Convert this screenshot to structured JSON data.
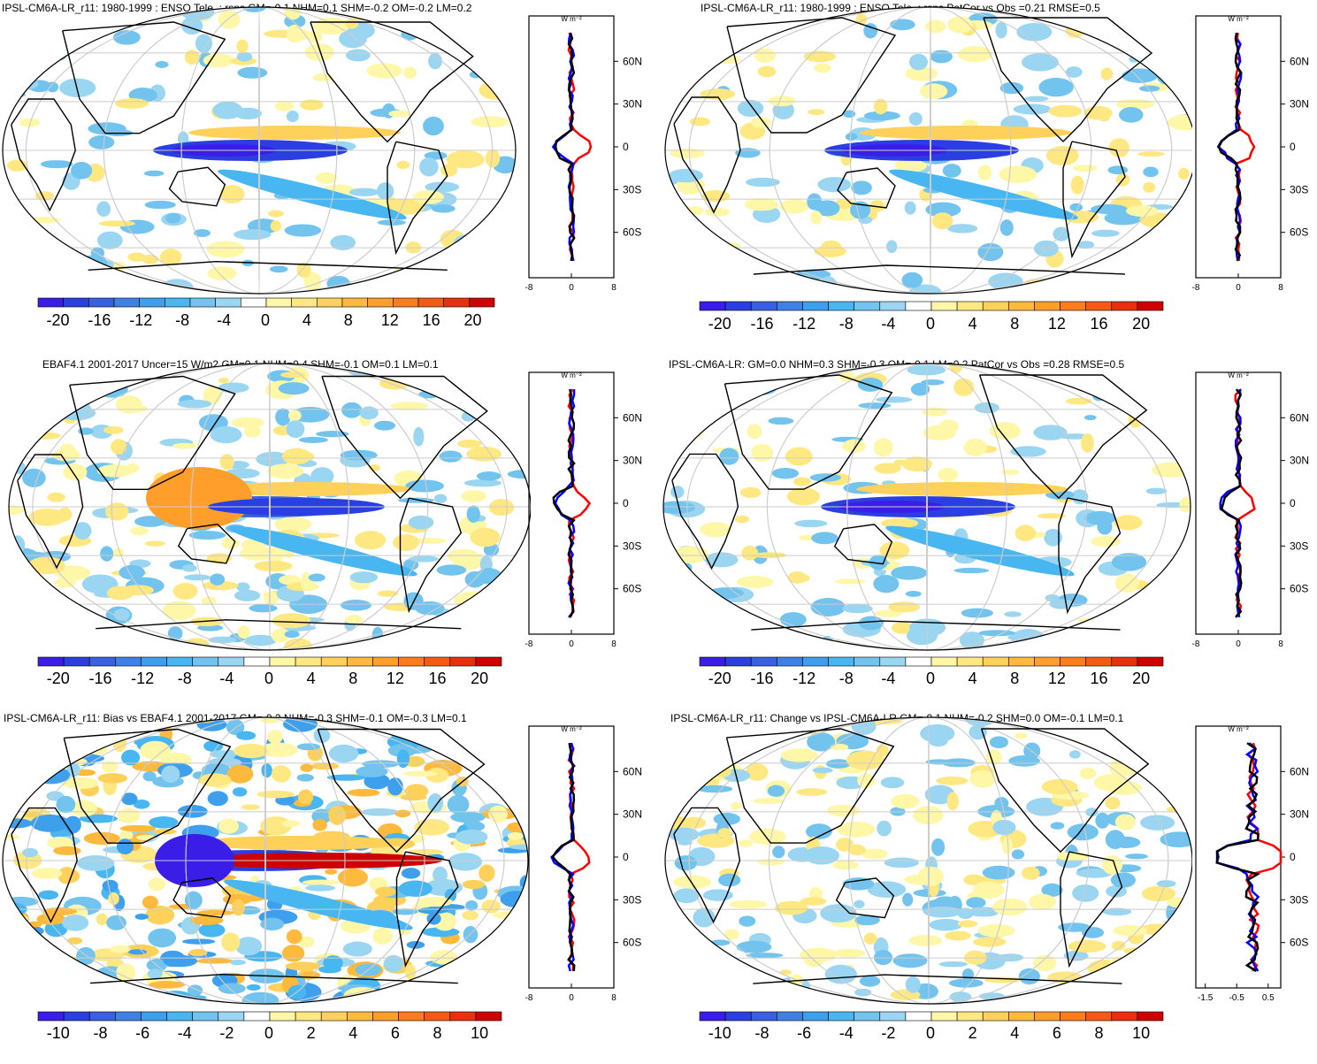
{
  "panels": [
    {
      "id": "p1",
      "title": "IPSL-CM6A-LR_r11: 1980-1999 : ENSO Tele. : rsns GM=-0.1 NHM=0.1 SHM=-0.2 OM=-0.2 LM=0.2",
      "colorbar_ticks": [
        "-20",
        "-16",
        "-12",
        "-8",
        "-4",
        "0",
        "4",
        "8",
        "12",
        "16",
        "20"
      ],
      "profile": {
        "unit": "W m⁻²",
        "x_ticks": [
          "-8",
          "0",
          "8"
        ],
        "lat_ticks": [
          "60N",
          "30N",
          "0",
          "30S",
          "60S"
        ],
        "xlim": [
          -8,
          8
        ]
      }
    },
    {
      "id": "p2",
      "title": "IPSL-CM6A-LR_r11: 1980-1999 : ENSO Tele. : rsns PatCor vs Obs =0.21 RMSE=0.5",
      "colorbar_ticks": [
        "-20",
        "-16",
        "-12",
        "-8",
        "-4",
        "0",
        "4",
        "8",
        "12",
        "16",
        "20"
      ],
      "profile": {
        "unit": "W m⁻²",
        "x_ticks": [
          "-8",
          "0",
          "8"
        ],
        "lat_ticks": [
          "60N",
          "30N",
          "0",
          "30S",
          "60S"
        ],
        "xlim": [
          -8,
          8
        ]
      }
    },
    {
      "id": "p3",
      "title": "EBAF4.1 2001-2017 Uncer=15 W/m2 GM=0.1 NHM=0.4 SHM=-0.1 OM=0.1 LM=0.1",
      "colorbar_ticks": [
        "-20",
        "-16",
        "-12",
        "-8",
        "-4",
        "0",
        "4",
        "8",
        "12",
        "16",
        "20"
      ],
      "profile": {
        "unit": "W m⁻²",
        "x_ticks": [
          "-8",
          "0",
          "8"
        ],
        "lat_ticks": [
          "60N",
          "30N",
          "0",
          "30S",
          "60S"
        ],
        "xlim": [
          -8,
          8
        ]
      }
    },
    {
      "id": "p4",
      "title": "IPSL-CM6A-LR: GM=0.0 NHM=0.3 SHM=-0.3 OM=-0.1 LM=0.2 PatCor vs Obs =0.28 RMSE=0.5",
      "colorbar_ticks": [
        "-20",
        "-16",
        "-12",
        "-8",
        "-4",
        "0",
        "4",
        "8",
        "12",
        "16",
        "20"
      ],
      "profile": {
        "unit": "W m⁻²",
        "x_ticks": [
          "-8",
          "0",
          "8"
        ],
        "lat_ticks": [
          "60N",
          "30N",
          "0",
          "30S",
          "60S"
        ],
        "xlim": [
          -8,
          8
        ]
      }
    },
    {
      "id": "p5",
      "title": "IPSL-CM6A-LR_r11: Bias vs EBAF4.1 2001-2017 GM=-0.2 NHM=-0.3 SHM=-0.1 OM=-0.3 LM=0.1",
      "colorbar_ticks": [
        "-10",
        "-8",
        "-6",
        "-4",
        "-2",
        "0",
        "2",
        "4",
        "6",
        "8",
        "10"
      ],
      "profile": {
        "unit": "W m⁻²",
        "x_ticks": [
          "-8",
          "0",
          "8"
        ],
        "lat_ticks": [
          "60N",
          "30N",
          "0",
          "30S",
          "60S"
        ],
        "xlim": [
          -8,
          8
        ]
      }
    },
    {
      "id": "p6",
      "title": "IPSL-CM6A-LR_r11: Change vs IPSL-CM6A-LR GM=-0.1 NHM=-0.2 SHM=0.0 OM=-0.1 LM=0.1",
      "colorbar_ticks": [
        "-10",
        "-8",
        "-6",
        "-4",
        "-2",
        "0",
        "2",
        "4",
        "6",
        "8",
        "10"
      ],
      "profile": {
        "unit": "W m⁻²",
        "x_ticks": [
          "-1.5",
          "-0.5",
          "0.5"
        ],
        "lat_ticks": [
          "60N",
          "30N",
          "0",
          "30S",
          "60S"
        ],
        "xlim": [
          -1.8,
          0.9
        ]
      }
    }
  ],
  "colormap": [
    "#3a1ee8",
    "#2b3fe0",
    "#3860e0",
    "#3f80e6",
    "#3ea0ec",
    "#48b6f0",
    "#72c4ee",
    "#9ad6f2",
    "#ffffff",
    "#fff7a8",
    "#ffe882",
    "#ffd15a",
    "#ffb93c",
    "#ff9e2a",
    "#ff7c1c",
    "#f55a14",
    "#e8300e",
    "#d00000"
  ],
  "line_colors": {
    "obs": "#ff0000",
    "model": "#0000ff",
    "model2": "#000000"
  }
}
